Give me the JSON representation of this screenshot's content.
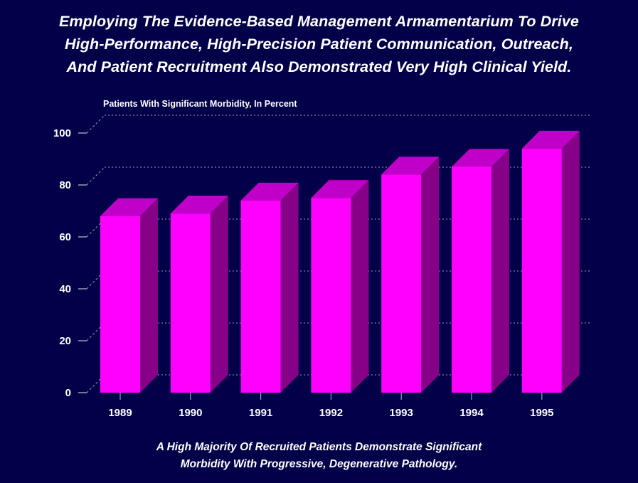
{
  "title": {
    "lines": [
      "Employing The Evidence-Based Management Armamentarium To Drive",
      "High-Performance, High-Precision Patient Communication, Outreach,",
      "And Patient Recruitment Also Demonstrated Very High Clinical Yield."
    ]
  },
  "footer": {
    "lines": [
      "A High Majority Of Recruited Patients Demonstrate Significant",
      "Morbidity With Progressive, Degenerative Pathology."
    ]
  },
  "colors": {
    "background": "#03004a",
    "bar_front": "#ff00ff",
    "bar_top": "#c000c8",
    "bar_side": "#860088",
    "grid": "#9a9ab8"
  },
  "chart_data": {
    "type": "bar",
    "style": "3d",
    "title": "Patients With Significant Morbidity, In Percent",
    "xlabel": "",
    "ylabel": "Patients With Significant Morbidity, In Percent",
    "categories": [
      "1989",
      "1990",
      "1991",
      "1992",
      "1993",
      "1994",
      "1995"
    ],
    "values": [
      68,
      69,
      74,
      75,
      84,
      87,
      94
    ],
    "ylim": [
      0,
      100
    ],
    "yticks": [
      0,
      20,
      40,
      60,
      80,
      100
    ],
    "ytick_labels": [
      "0",
      "20",
      "40",
      "60",
      "80",
      "100"
    ],
    "grid": true
  }
}
